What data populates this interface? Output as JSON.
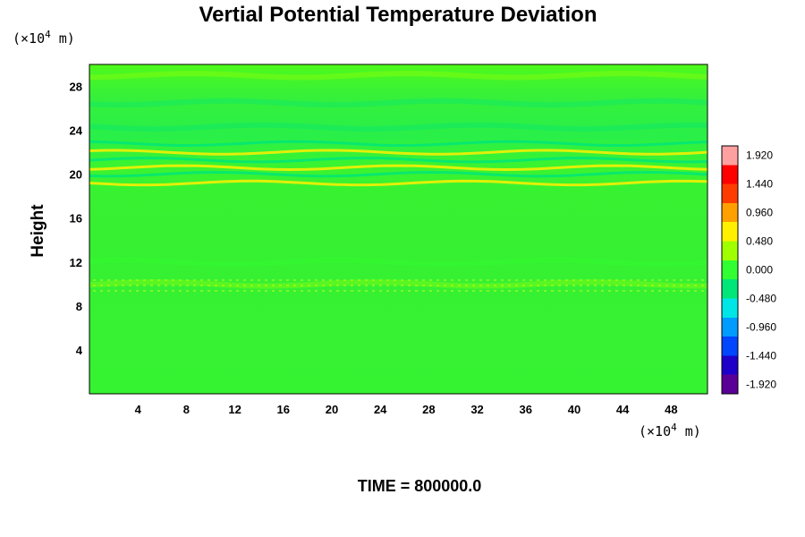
{
  "chart_data": {
    "type": "heatmap",
    "title": "Vertial Potential Temperature Deviation",
    "ylabel": "Height",
    "xlabel": "",
    "x_unit": {
      "prefix": "(×10",
      "exp": "4",
      "suffix": " m)"
    },
    "y_unit": {
      "prefix": "(×10",
      "exp": "4",
      "suffix": " m)"
    },
    "xlim": [
      0,
      51
    ],
    "ylim": [
      0,
      30
    ],
    "x_ticks": [
      "4",
      "8",
      "12",
      "16",
      "20",
      "24",
      "28",
      "32",
      "36",
      "40",
      "44",
      "48"
    ],
    "y_ticks": [
      "4",
      "8",
      "12",
      "16",
      "20",
      "24",
      "28"
    ],
    "colorbar": {
      "range": [
        -2.08,
        2.08
      ],
      "tick_labels": [
        "1.920",
        "1.440",
        "0.960",
        "0.480",
        "0.000",
        "-0.480",
        "-0.960",
        "-1.440",
        "-1.920"
      ],
      "colors": [
        "#5a0096",
        "#1e00c8",
        "#0046ff",
        "#009bff",
        "#00e6e6",
        "#00e678",
        "#32ff32",
        "#a0ff00",
        "#fff000",
        "#ffa000",
        "#ff3c00",
        "#ff0000",
        "#ffa0a0"
      ]
    },
    "field_description_values": {
      "background_value": 0.15,
      "bands": [
        {
          "height": 19.2,
          "value": 0.55
        },
        {
          "height": 20.0,
          "value": -0.35
        },
        {
          "height": 20.6,
          "value": 0.75
        },
        {
          "height": 21.3,
          "value": -0.45
        },
        {
          "height": 22.0,
          "value": 0.6
        },
        {
          "height": 22.8,
          "value": -0.3
        },
        {
          "height": 24.3,
          "value": -0.2
        },
        {
          "height": 26.5,
          "value": -0.25
        },
        {
          "height": 29.0,
          "value": 0.3
        },
        {
          "height": 10.0,
          "value": 0.35
        },
        {
          "height": 12.0,
          "value": -0.1
        }
      ]
    },
    "footer": "TIME = 800000.0"
  }
}
